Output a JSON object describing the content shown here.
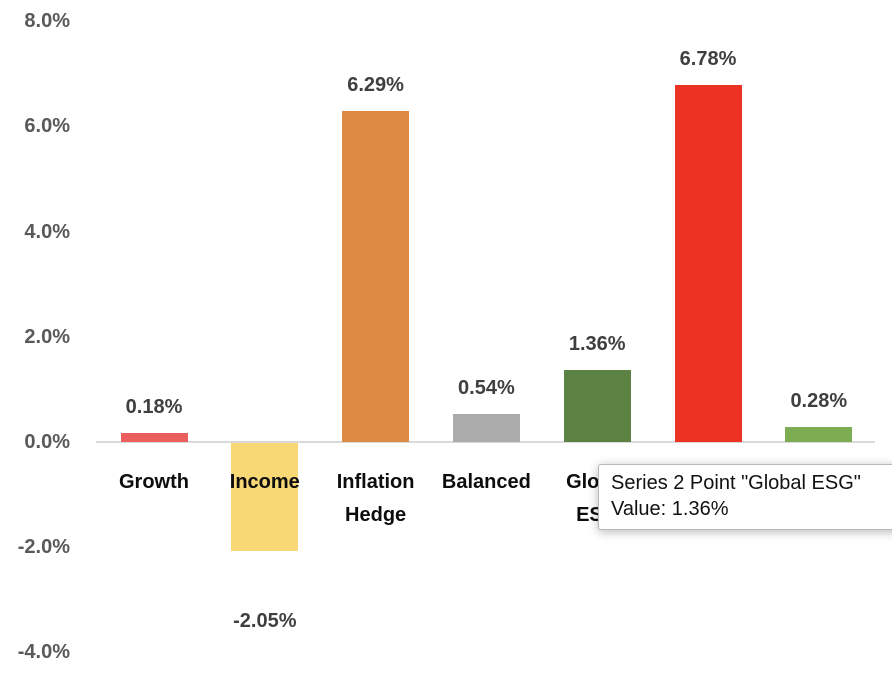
{
  "chart_data": {
    "type": "bar",
    "title": "",
    "xlabel": "",
    "ylabel": "",
    "categories": [
      "Growth",
      "Income",
      "Inflation Hedge",
      "Balanced",
      "Global ESG",
      "",
      ""
    ],
    "values": [
      0.18,
      -2.05,
      6.29,
      0.54,
      1.36,
      6.78,
      0.28
    ],
    "data_labels": [
      "0.18%",
      "-2.05%",
      "6.29%",
      "0.54%",
      "1.36%",
      "6.78%",
      "0.28%"
    ],
    "bar_colors": [
      "#ea5e5e",
      "#f8d775",
      "#df8a44",
      "#ababab",
      "#5c8243",
      "#ec3323",
      "#7dad52"
    ],
    "y_tick_labels": [
      "8.0%",
      "6.0%",
      "4.0%",
      "2.0%",
      "0.0%",
      "-2.0%",
      "-4.0%"
    ],
    "y_tick_values": [
      8,
      6,
      4,
      2,
      0,
      -2,
      -4
    ],
    "ylim": [
      -4,
      8
    ],
    "grid": false,
    "legend_position": "none",
    "axis_line_color": "#d9d9d9",
    "y_tick_color": "#595959",
    "data_label_color": "#3f3f3f",
    "category_label_color": "#0d0d0d"
  },
  "tooltip": {
    "line1": "Series 2 Point \"Global ESG\"",
    "line2": "Value: 1.36%"
  }
}
